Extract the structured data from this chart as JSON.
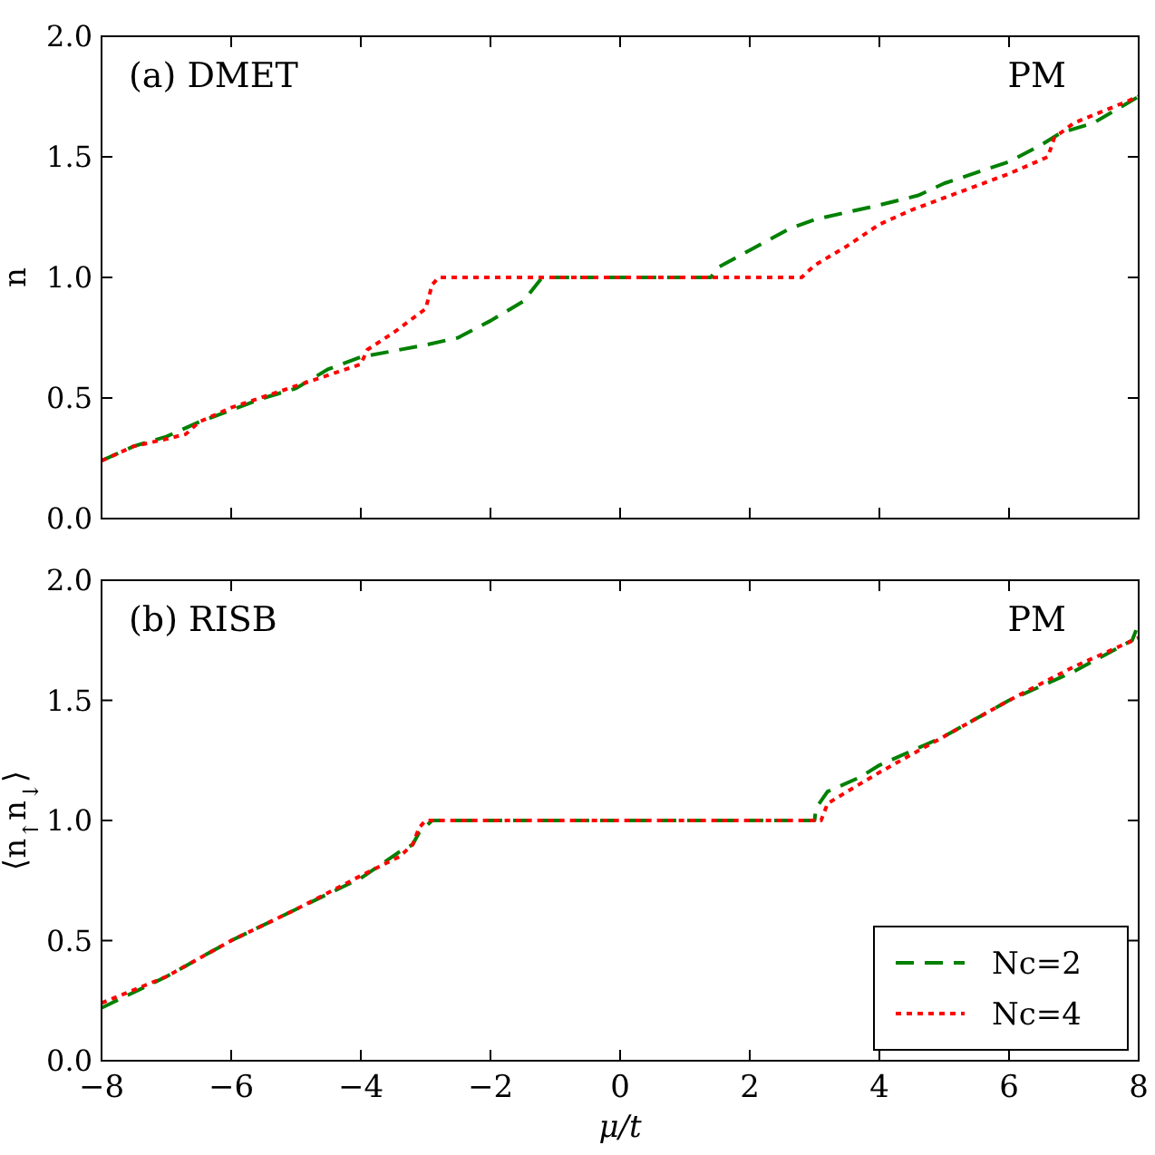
{
  "chart_data": [
    {
      "type": "line",
      "ylabel": "n",
      "annotations": [
        "(a) DMET",
        "PM"
      ],
      "xlim": [
        -8,
        8
      ],
      "ylim": [
        0,
        2
      ],
      "xticks": [
        -8,
        -6,
        -4,
        -2,
        0,
        2,
        4,
        6,
        8
      ],
      "yticks": [
        {
          "value": 0,
          "label": "0.0"
        },
        {
          "value": 0.5,
          "label": "0.5"
        },
        {
          "value": 1,
          "label": "1.0"
        },
        {
          "value": 1.5,
          "label": "1.5"
        },
        {
          "value": 2,
          "label": "2.0"
        }
      ],
      "tick_labels": "y",
      "grid": false,
      "legend": false,
      "series": [
        {
          "color": "#008000",
          "line_style": "dashed",
          "x": [
            -8,
            -7.5,
            -7,
            -6.5,
            -6,
            -5.5,
            -5,
            -4.5,
            -4,
            -3,
            -2.5,
            -2,
            -1.5,
            -1.2,
            1.4,
            1.5,
            2.6,
            3,
            4,
            4.6,
            5,
            6,
            6.5,
            6.8,
            7.3,
            8
          ],
          "values": [
            0.24,
            0.3,
            0.34,
            0.4,
            0.45,
            0.5,
            0.54,
            0.62,
            0.67,
            0.72,
            0.75,
            0.82,
            0.9,
            1,
            1,
            1.04,
            1.2,
            1.24,
            1.3,
            1.34,
            1.39,
            1.48,
            1.55,
            1.6,
            1.64,
            1.75
          ]
        },
        {
          "color": "#ff0000",
          "line_style": "dotted",
          "x": [
            -8,
            -7.5,
            -7,
            -6.7,
            -6.5,
            -6,
            -5,
            -4,
            -3.9,
            -3.5,
            -3,
            -2.9,
            -2.8,
            2.8,
            3,
            3.5,
            4,
            4.5,
            5,
            6,
            6.6,
            6.7,
            7,
            8
          ],
          "values": [
            0.24,
            0.3,
            0.33,
            0.35,
            0.4,
            0.46,
            0.55,
            0.64,
            0.7,
            0.77,
            0.87,
            0.97,
            1,
            1,
            1.05,
            1.13,
            1.22,
            1.28,
            1.33,
            1.43,
            1.5,
            1.58,
            1.64,
            1.75
          ]
        }
      ]
    },
    {
      "type": "line",
      "xlabel": "μ/t",
      "ylabel": "⟨n$_{↑}$n$_{↓}$⟩",
      "annotations": [
        "(b) RISB",
        "PM"
      ],
      "xlim": [
        -8,
        8
      ],
      "ylim": [
        0,
        2
      ],
      "xticks": [
        -8,
        -6,
        -4,
        -2,
        0,
        2,
        4,
        6,
        8
      ],
      "yticks": [
        {
          "value": 0,
          "label": "0.0"
        },
        {
          "value": 0.5,
          "label": "0.5"
        },
        {
          "value": 1,
          "label": "1.0"
        },
        {
          "value": 1.5,
          "label": "1.5"
        },
        {
          "value": 2,
          "label": "2.0"
        }
      ],
      "grid": false,
      "legend": "bottom right",
      "series": [
        {
          "name": "Nc=2",
          "color": "#008000",
          "line_style": "dashed",
          "x": [
            -8,
            -7,
            -6,
            -5,
            -4,
            -3.4,
            -3.2,
            -3.1,
            -2.9,
            3,
            3.02,
            3.2,
            3.7,
            4,
            5,
            6,
            7,
            7.9,
            8
          ],
          "values": [
            0.22,
            0.35,
            0.5,
            0.63,
            0.76,
            0.87,
            0.9,
            0.95,
            1,
            1,
            1.05,
            1.12,
            1.18,
            1.23,
            1.35,
            1.5,
            1.62,
            1.75,
            1.82
          ]
        },
        {
          "name": "Nc=4",
          "color": "#ff0000",
          "line_style": "dotted",
          "x": [
            -8,
            -7,
            -6,
            -5,
            -4,
            -3.4,
            -3.2,
            -3.1,
            -3,
            3.1,
            3.2,
            3.5,
            4,
            5,
            6,
            7,
            8
          ],
          "values": [
            0.24,
            0.35,
            0.5,
            0.63,
            0.77,
            0.85,
            0.9,
            0.97,
            1,
            1,
            1.07,
            1.12,
            1.2,
            1.35,
            1.5,
            1.64,
            1.76
          ]
        }
      ]
    }
  ]
}
